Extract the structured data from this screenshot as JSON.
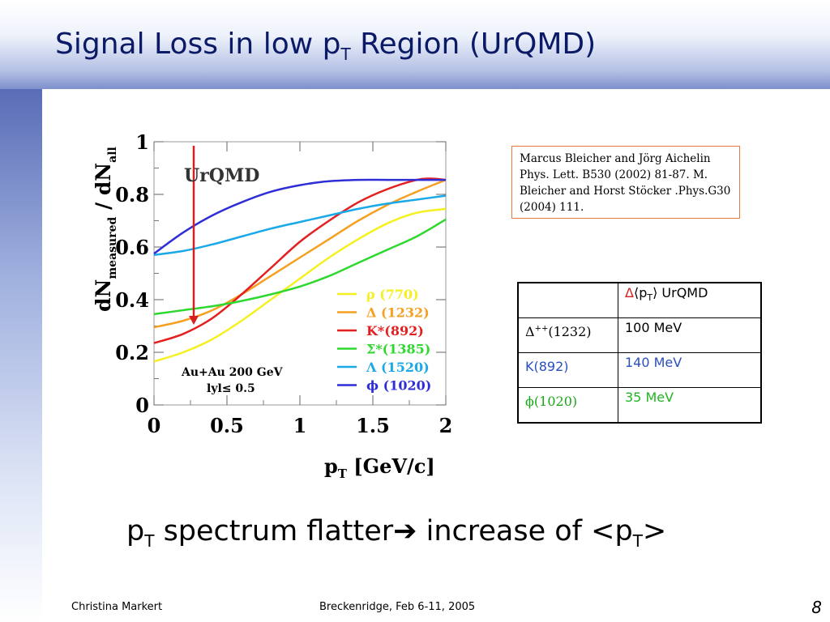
{
  "slide": {
    "title_main": "Signal Loss in low p",
    "title_sub": "T",
    "title_rest": " Region (UrQMD)"
  },
  "reference": {
    "lines": [
      "Marcus Bleicher and Jörg Aichelin",
      " Phys. Lett. B530 (2002) 81-87. M.",
      "Bleicher and Horst Stöcker .Phys.G30",
      "(2004) 111."
    ]
  },
  "pt_table": {
    "header": {
      "delta": "Δ",
      "open": "⟨p",
      "sub": "T",
      "close": "⟩ UrQMD"
    },
    "rows": [
      {
        "name": "Δ",
        "sup": "++",
        "rest": "(1232)",
        "value": "100 MeV",
        "name_color": "#000000",
        "value_color": "#000000"
      },
      {
        "name": "K(892)",
        "sup": "",
        "rest": "",
        "value": "140 MeV",
        "name_color": "#2a4fbf",
        "value_color": "#2a4fbf"
      },
      {
        "name": "ϕ",
        "sup": "",
        "rest": "(1020)",
        "value": "35  MeV",
        "name_color": "#1aa81a",
        "value_color": "#22b422"
      }
    ]
  },
  "bottom_text": {
    "p": "p",
    "sub": "T",
    "mid": " spectrum flatter",
    "arrow": "➔",
    "end_a": " increase of <p",
    "sub2": "T",
    "end_b": ">"
  },
  "footer": {
    "author": "Christina Markert",
    "event": "Breckenridge, Feb 6-11, 2005",
    "page": "8"
  },
  "chart_data": {
    "type": "line",
    "title": "UrQMD",
    "xlabel_main": "p",
    "xlabel_sub": "T",
    "xlabel_rest": " [GeV/c]",
    "ylabel_main": "dN",
    "ylabel_sub1": "measured",
    "ylabel_mid": " / dN",
    "ylabel_sub2": "all",
    "xlim": [
      0,
      2
    ],
    "ylim": [
      0,
      1
    ],
    "xticks": [
      "0",
      "0.5",
      "1",
      "1.5",
      "2"
    ],
    "yticks": [
      "0",
      "0.2",
      "0.4",
      "0.6",
      "0.8",
      "1"
    ],
    "info_line1": "Au+Au 200 GeV",
    "info_line2": "lyl≤ 0.5",
    "legend_position": "lower-right",
    "series": [
      {
        "name": "ρ (770)",
        "color": "#f5f020",
        "x": [
          0,
          0.2,
          0.4,
          0.6,
          0.8,
          1.0,
          1.2,
          1.4,
          1.6,
          1.8,
          2.0
        ],
        "y": [
          0.165,
          0.2,
          0.25,
          0.32,
          0.4,
          0.48,
          0.56,
          0.63,
          0.69,
          0.73,
          0.745
        ]
      },
      {
        "name": "Δ (1232)",
        "color": "#f5a020",
        "x": [
          0,
          0.2,
          0.4,
          0.6,
          0.8,
          1.0,
          1.2,
          1.4,
          1.6,
          1.8,
          2.0
        ],
        "y": [
          0.295,
          0.32,
          0.36,
          0.42,
          0.49,
          0.56,
          0.63,
          0.7,
          0.76,
          0.81,
          0.855
        ]
      },
      {
        "name": "K*(892)",
        "color": "#e41f1f",
        "x": [
          0,
          0.2,
          0.4,
          0.6,
          0.8,
          1.0,
          1.2,
          1.4,
          1.6,
          1.8,
          1.9,
          2.0
        ],
        "y": [
          0.235,
          0.27,
          0.33,
          0.42,
          0.52,
          0.62,
          0.7,
          0.77,
          0.82,
          0.855,
          0.86,
          0.855
        ]
      },
      {
        "name": "Σ*(1385)",
        "color": "#2ed82e",
        "x": [
          0,
          0.2,
          0.4,
          0.6,
          0.8,
          1.0,
          1.2,
          1.4,
          1.6,
          1.8,
          2.0
        ],
        "y": [
          0.345,
          0.36,
          0.375,
          0.395,
          0.42,
          0.45,
          0.49,
          0.54,
          0.59,
          0.64,
          0.705
        ]
      },
      {
        "name": "Λ (1520)",
        "color": "#19a8e8",
        "x": [
          0,
          0.2,
          0.4,
          0.6,
          0.8,
          1.0,
          1.2,
          1.4,
          1.6,
          1.8,
          2.0
        ],
        "y": [
          0.57,
          0.585,
          0.61,
          0.64,
          0.67,
          0.695,
          0.72,
          0.745,
          0.765,
          0.78,
          0.795
        ]
      },
      {
        "name": "ϕ (1020)",
        "color": "#2e2ed8",
        "x": [
          0,
          0.2,
          0.4,
          0.6,
          0.8,
          1.0,
          1.2,
          1.4,
          1.6,
          1.8,
          2.0
        ],
        "y": [
          0.575,
          0.655,
          0.72,
          0.77,
          0.81,
          0.835,
          0.85,
          0.855,
          0.855,
          0.855,
          0.855
        ]
      }
    ]
  }
}
